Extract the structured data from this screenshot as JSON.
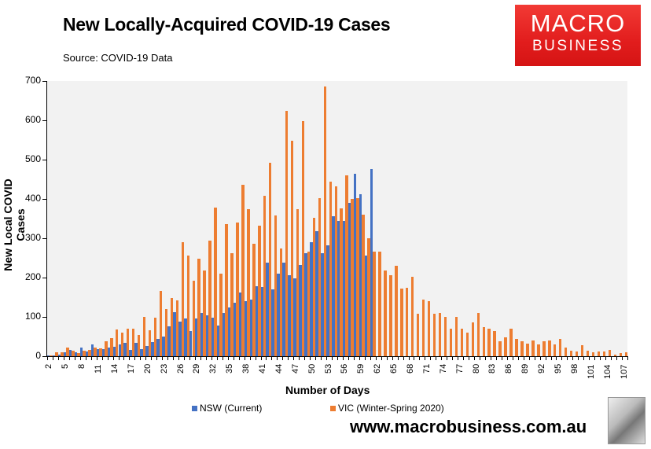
{
  "header": {
    "title": "New Locally-Acquired COVID-19 Cases",
    "source": "Source: COVID-19 Data",
    "logo_line1": "MACRO",
    "logo_line2": "BUSINESS"
  },
  "footer": {
    "website": "www.macrobusiness.com.au",
    "mascot_icon": "wolf-icon"
  },
  "colors": {
    "nsw": "#4472c4",
    "vic": "#ed7d31",
    "plot_bg": "#f2f2f2",
    "logo_red": "#e21d1d"
  },
  "chart_data": {
    "type": "bar",
    "title": "New Locally-Acquired COVID-19 Cases",
    "subtitle": "Source: COVID-19 Data",
    "xlabel": "Number of Days",
    "ylabel": "New Local COVID Cases",
    "ylim": [
      0,
      700
    ],
    "yticks": [
      0,
      100,
      200,
      300,
      400,
      500,
      600,
      700
    ],
    "x_start": 2,
    "x_end": 107,
    "xtick_labels": [
      "2",
      "5",
      "8",
      "11",
      "14",
      "17",
      "20",
      "23",
      "26",
      "29",
      "32",
      "35",
      "38",
      "41",
      "44",
      "47",
      "50",
      "53",
      "56",
      "59",
      "62",
      "65",
      "68",
      "71",
      "74",
      "77",
      "80",
      "83",
      "86",
      "89",
      "92",
      "95",
      "98",
      "101",
      "104",
      "107"
    ],
    "grid": false,
    "legend_position": "bottom",
    "series": [
      {
        "name": "NSW (Current)",
        "color": "#4472c4",
        "values": [
          2,
          3,
          5,
          10,
          16,
          10,
          22,
          12,
          30,
          18,
          18,
          22,
          24,
          30,
          34,
          16,
          34,
          18,
          26,
          36,
          44,
          50,
          76,
          112,
          88,
          96,
          64,
          96,
          110,
          104,
          98,
          78,
          110,
          124,
          136,
          162,
          140,
          144,
          178,
          176,
          238,
          170,
          210,
          238,
          206,
          198,
          232,
          262,
          290,
          318,
          262,
          282,
          356,
          344,
          344,
          390,
          464,
          412,
          256,
          476
        ]
      },
      {
        "name": "VIC (Winter-Spring 2020)",
        "color": "#ed7d31",
        "values": [
          3,
          10,
          10,
          22,
          14,
          8,
          14,
          16,
          22,
          20,
          38,
          46,
          68,
          60,
          70,
          70,
          54,
          100,
          66,
          98,
          166,
          120,
          148,
          142,
          290,
          256,
          192,
          248,
          218,
          294,
          378,
          210,
          336,
          262,
          340,
          436,
          374,
          286,
          332,
          408,
          492,
          358,
          274,
          624,
          548,
          374,
          598,
          266,
          352,
          402,
          686,
          444,
          432,
          376,
          460,
          400,
          402,
          360,
          300,
          266,
          266,
          218,
          206,
          230,
          172,
          174,
          202,
          108,
          144,
          140,
          108,
          110,
          100,
          70,
          100,
          70,
          60,
          86,
          110,
          74,
          70,
          64,
          38,
          48,
          70,
          44,
          38,
          32,
          40,
          30,
          38,
          40,
          30,
          44,
          22,
          14,
          12,
          28,
          14,
          10,
          12,
          12,
          16,
          4,
          8,
          10
        ]
      }
    ]
  },
  "legend": {
    "nsw_label": "NSW (Current)",
    "vic_label": "VIC (Winter-Spring 2020)"
  }
}
